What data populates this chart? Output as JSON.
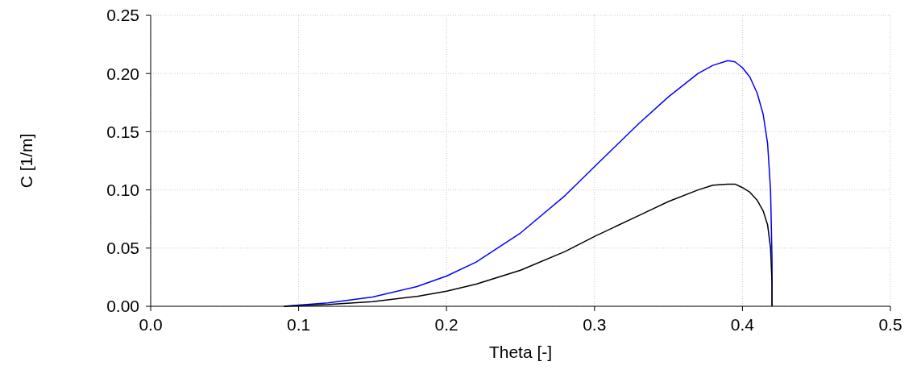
{
  "chart_data": {
    "type": "line",
    "xlabel": "Theta [-]",
    "ylabel": "C [1/m]",
    "xlim": [
      0,
      0.5
    ],
    "xticks": [
      {
        "value": 0,
        "label": "0.0"
      },
      0.1,
      0.2,
      0.3,
      0.4,
      0.5
    ],
    "ylim": [
      0,
      0.25
    ],
    "yticks": [
      {
        "value": 0,
        "label": "0.00"
      },
      0.05,
      {
        "value": 0.1,
        "label": "0.10"
      },
      0.15,
      {
        "value": 0.2,
        "label": "0.20"
      },
      0.25
    ],
    "grid": true,
    "line_style": "solid",
    "series": [
      {
        "color": "#0000ff",
        "x": [
          0.09,
          0.1,
          0.12,
          0.15,
          0.18,
          0.2,
          0.22,
          0.25,
          0.28,
          0.3,
          0.33,
          0.35,
          0.37,
          0.38,
          0.39,
          0.395,
          0.4,
          0.405,
          0.41,
          0.414,
          0.417,
          0.419,
          0.42,
          0.42
        ],
        "values": [
          0,
          0.001,
          0.003,
          0.008,
          0.017,
          0.026,
          0.038,
          0.063,
          0.095,
          0.12,
          0.157,
          0.18,
          0.2,
          0.207,
          0.211,
          0.21,
          0.205,
          0.197,
          0.183,
          0.165,
          0.14,
          0.1,
          0.04,
          0
        ]
      },
      {
        "color": "#000000",
        "x": [
          0.09,
          0.1,
          0.12,
          0.15,
          0.18,
          0.2,
          0.22,
          0.25,
          0.28,
          0.3,
          0.33,
          0.35,
          0.37,
          0.38,
          0.39,
          0.395,
          0.4,
          0.405,
          0.41,
          0.414,
          0.417,
          0.419,
          0.42,
          0.42
        ],
        "values": [
          0,
          0.0005,
          0.0015,
          0.004,
          0.0085,
          0.013,
          0.019,
          0.031,
          0.047,
          0.06,
          0.078,
          0.09,
          0.1,
          0.104,
          0.105,
          0.105,
          0.102,
          0.098,
          0.091,
          0.082,
          0.07,
          0.05,
          0.02,
          0
        ]
      }
    ]
  }
}
